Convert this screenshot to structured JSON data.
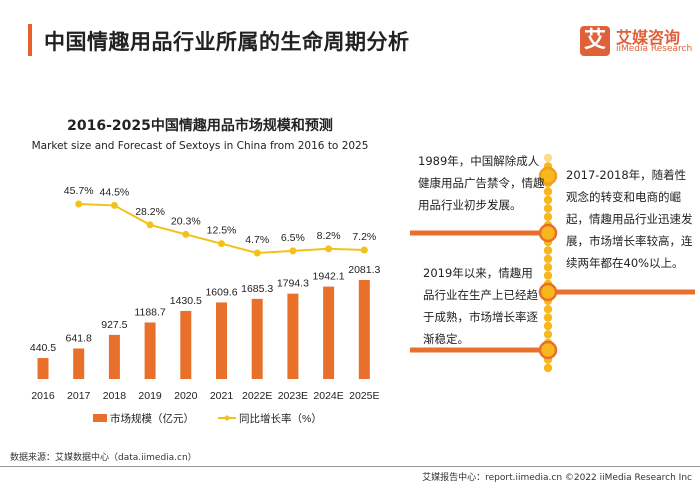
{
  "header": {
    "title": "中国情趣用品行业所属的生命周期分析"
  },
  "logo": {
    "mark": "艾",
    "name_cn": "艾媒咨询",
    "name_en": "iiMedia Research"
  },
  "chart_data": {
    "type": "bar+line",
    "title": "2016-2025中国情趣用品市场规模和预测",
    "subtitle": "Market size and Forecast of Sextoys in China from 2016 to 2025",
    "categories": [
      "2016",
      "2017",
      "2018",
      "2019",
      "2020",
      "2021",
      "2022E",
      "2023E",
      "2024E",
      "2025E"
    ],
    "series": [
      {
        "name": "市场规模（亿元）",
        "type": "bar",
        "color": "#e8702a",
        "values": [
          440.5,
          641.8,
          927.5,
          1188.7,
          1430.5,
          1609.6,
          1685.3,
          1794.3,
          1942.1,
          2081.3
        ],
        "labels": [
          "440.5",
          "641.8",
          "927.5",
          "1188.7",
          "1430.5",
          "1609.6",
          "1685.3",
          "1794.3",
          "1942.1",
          "2081.3"
        ]
      },
      {
        "name": "同比增长率（%）",
        "type": "line",
        "color": "#f2c21b",
        "values": [
          null,
          45.7,
          44.5,
          28.2,
          20.3,
          12.5,
          4.7,
          6.5,
          8.2,
          7.2
        ],
        "labels": [
          "",
          "45.7%",
          "44.5%",
          "28.2%",
          "20.3%",
          "12.5%",
          "4.7%",
          "6.5%",
          "8.2%",
          "7.2%"
        ]
      }
    ],
    "legend_position": "bottom",
    "grid": false
  },
  "timeline": {
    "items": [
      {
        "text": "1989年，中国解除成人健康用品广告禁令，情趣用品行业初步发展。"
      },
      {
        "text": "2017-2018年，随着性观念的转变和电商的崛起，情趣用品行业迅速发展，市场增长率较高，连续两年都在40%以上。"
      },
      {
        "text": "2019年以来，情趣用品行业在生产上已经趋于成熟，市场增长率逐渐稳定。"
      }
    ],
    "colors": {
      "line": "#e8702a",
      "dot": "#f7b71d"
    }
  },
  "source": "数据来源：艾媒数据中心（data.iimedia.cn）",
  "footer": "艾媒报告中心：report.iimedia.cn  ©2022  iiMedia Research  Inc"
}
